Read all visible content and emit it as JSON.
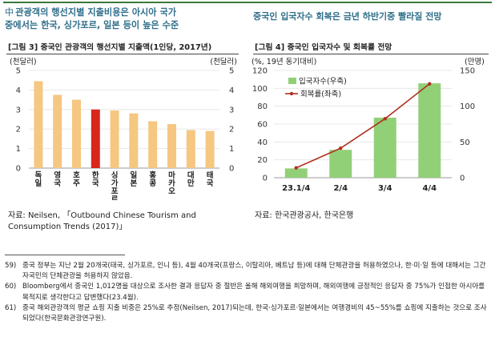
{
  "headline": {
    "bullet": "中",
    "left_line1": "관광객의 행선지별 지출비용은 아시아 국가",
    "left_line2": "중에서는 한국, 싱가포르, 일본 등이 높은 수준",
    "right": "중국인 입국자수 회복은 금년 하반기중 빨라질 전망"
  },
  "figure3": {
    "title": "[그림 3] 중국인 관광객의 행선지별 지출액(1인당, 2017년)",
    "source_line1": "자료: Neilsen, 「Outbound Chinese Tourism and",
    "source_line2": "Consumption Trends (2017)」"
  },
  "figure4": {
    "title": "[그림 4] 중국인 입국자수 및 회복률 전망",
    "source": "자료: 한국관광공사, 한국은행"
  },
  "chart_data": [
    {
      "type": "bar",
      "title": "[그림 3] 중국인 관광객의 행선지별 지출액(1인당, 2017년)",
      "ylabel_left": "(천달러)",
      "ylabel_right": "(천달러)",
      "ylim": [
        0,
        5
      ],
      "yticks": [
        "0",
        "1",
        "2",
        "3",
        "4",
        "5"
      ],
      "categories": [
        "독일",
        "영국",
        "호주",
        "한국",
        "싱가포르",
        "일본",
        "홍콩",
        "마카오",
        "대만",
        "태국"
      ],
      "category_labels": [
        [
          "독",
          "일"
        ],
        [
          "영",
          "국"
        ],
        [
          "호",
          "주"
        ],
        [
          "한",
          "국"
        ],
        [
          "싱",
          "가",
          "포",
          "르"
        ],
        [
          "일",
          "본"
        ],
        [
          "홍",
          "콩"
        ],
        [
          "마",
          "카",
          "오"
        ],
        [
          "대",
          "만"
        ],
        [
          "태",
          "국"
        ]
      ],
      "values": [
        4.45,
        3.75,
        3.5,
        3.0,
        2.95,
        2.8,
        2.4,
        2.25,
        1.95,
        1.9
      ],
      "highlight_index": 3,
      "colors": {
        "bar": "#f5c781",
        "highlight": "#d9261c"
      }
    },
    {
      "type": "bar+line",
      "title": "[그림 4] 중국인 입국자수 및 회복률 전망",
      "ylabel_left": "(%, 19년 동기대비)",
      "ylabel_right": "(만명)",
      "categories": [
        "23.1/4",
        "2/4",
        "3/4",
        "4/4"
      ],
      "ylim_left": [
        0,
        120
      ],
      "yticks_left": [
        "0",
        "20",
        "40",
        "60",
        "80",
        "100",
        "120"
      ],
      "ylim_right": [
        0,
        150
      ],
      "yticks_right": [
        "0",
        "50",
        "100",
        "150"
      ],
      "series": [
        {
          "name": "입국자수(우축)",
          "type": "bar",
          "axis": "right",
          "values": [
            13,
            39,
            84,
            132
          ],
          "color": "#92d078"
        },
        {
          "name": "회복률(좌축)",
          "type": "line",
          "axis": "left",
          "values": [
            11,
            33,
            66,
            105
          ],
          "color": "#b03020"
        }
      ]
    }
  ],
  "footnotes": [
    {
      "num": "59)",
      "text": "중국 정부는 지난 2월 20개국(태국, 싱가포르, 인니 등), 4월 40개국(프랑스, 이탈리아, 베트남 등)에 대해 단체관광을 허용하였으나, 한·미·일 등에 대해서는 그간 자국민의 단체관광을 허용하지 않았음."
    },
    {
      "num": "60)",
      "text": "Bloomberg에서 중국인 1,012명을 대상으로 조사한 결과 응답자 중 절반은 올해 해외여행을 희망하며, 해외여행에 긍정적인 응답자 중 75%가 인접한 아시아를 목적지로 생각한다고 답변했다(23.4월)."
    },
    {
      "num": "61)",
      "text": "중국 해외관광객의 평균 쇼핑 지출 비중은 25%로 추정(Neilsen, 2017)되는데, 한국·싱가포르·일본에서는 여행경비의 45~55%를 쇼핑에 지출하는 것으로 조사되었다(한국문화관광연구원)."
    }
  ]
}
